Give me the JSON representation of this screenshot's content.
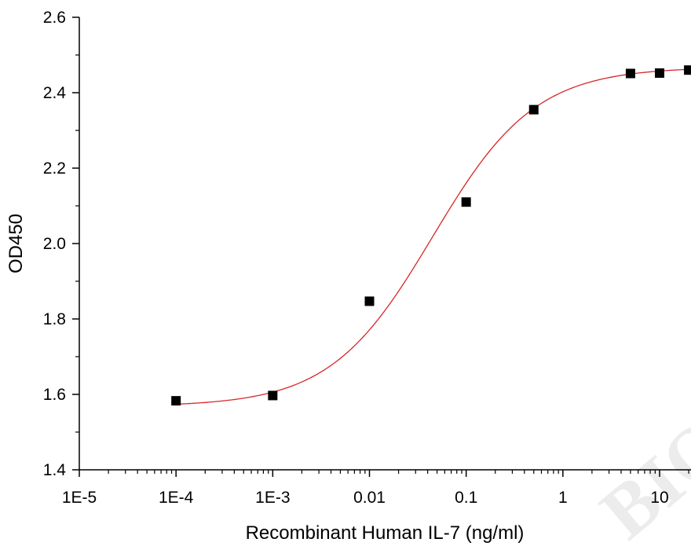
{
  "chart_data": {
    "type": "scatter",
    "title": "",
    "xlabel": "Recombinant Human IL-7 (ng/ml)",
    "ylabel": "OD450",
    "x_scale": "log",
    "xlim": [
      1e-05,
      20
    ],
    "ylim": [
      1.4,
      2.6
    ],
    "x_ticks": [
      {
        "value": 1e-05,
        "label": "1E-5"
      },
      {
        "value": 0.0001,
        "label": "1E-4"
      },
      {
        "value": 0.001,
        "label": "1E-3"
      },
      {
        "value": 0.01,
        "label": "0.01"
      },
      {
        "value": 0.1,
        "label": "0.1"
      },
      {
        "value": 1,
        "label": "1"
      },
      {
        "value": 10,
        "label": "10"
      }
    ],
    "y_ticks": [
      {
        "value": 1.4,
        "label": "1.4"
      },
      {
        "value": 1.6,
        "label": "1.6"
      },
      {
        "value": 1.8,
        "label": "1.8"
      },
      {
        "value": 2.0,
        "label": "2.0"
      },
      {
        "value": 2.2,
        "label": "2.2"
      },
      {
        "value": 2.4,
        "label": "2.4"
      },
      {
        "value": 2.6,
        "label": "2.6"
      }
    ],
    "grid": false,
    "legend": "none",
    "series": [
      {
        "marker": "square",
        "color": "#000000",
        "x": [
          0.0001,
          0.001,
          0.01,
          0.1,
          0.5,
          5,
          10,
          20
        ],
        "y": [
          1.583,
          1.597,
          1.847,
          2.11,
          2.355,
          2.451,
          2.452,
          2.46
        ]
      }
    ],
    "fit_curve": {
      "type": "4PL",
      "color": "#d62728",
      "bottom": 1.568,
      "top": 2.468,
      "ec50": 0.045,
      "hill": 0.82,
      "x_range": [
        0.0001,
        20
      ]
    }
  }
}
